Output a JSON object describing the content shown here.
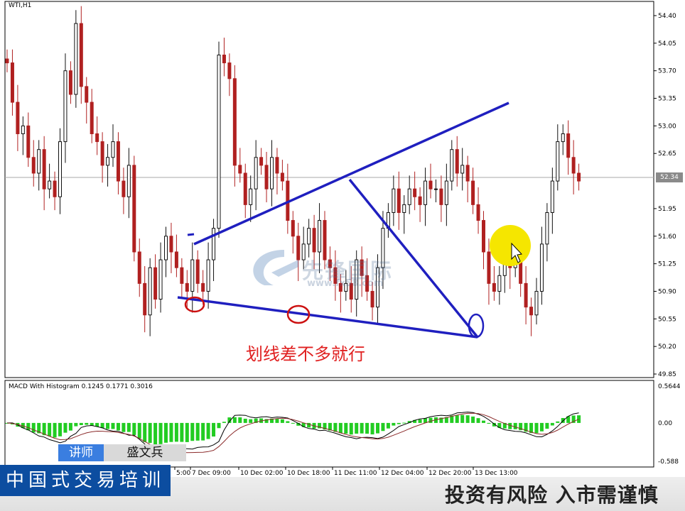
{
  "window": {
    "symbol": "WTI,H1"
  },
  "price_axis": {
    "ticks": [
      "54.40",
      "54.05",
      "53.70",
      "53.35",
      "53.00",
      "52.65",
      "52.34",
      "51.95",
      "51.60",
      "51.25",
      "50.90",
      "50.55",
      "50.20",
      "49.85"
    ],
    "last_price": "52.34"
  },
  "macd_panel": {
    "label": "MACD With Histogram 0.1245 0.1771 0.3016",
    "axis_ticks": [
      "0.5644",
      "0.00",
      "-0.588"
    ]
  },
  "time_axis": [
    "5:00",
    "7 Dec 09:00",
    "10 Dec 02:00",
    "10 Dec 18:00",
    "11 Dec 11:00",
    "12 Dec 04:00",
    "12 Dec 20:00",
    "13 Dec 13:00"
  ],
  "annotation": {
    "text": "划线差不多就行"
  },
  "watermark": {
    "name": "先锋国际",
    "url": "www.fx58.com"
  },
  "lecturer": {
    "tag": "讲师",
    "name": "盛文兵"
  },
  "course_banner": "中国式交易培训",
  "risk_notice": "投资有风险 入市需谨慎",
  "colors": {
    "bull": "#111111",
    "bear": "#b02020",
    "trendline": "#1f1fbf",
    "macd_hist": "#22cc22",
    "circle_red": "#cc1111",
    "cursor_highlight": "#f5e600"
  },
  "chart_data": {
    "type": "candlestick",
    "title": "WTI,H1",
    "ylim": [
      49.85,
      54.4
    ],
    "price_series_close": [
      53.8,
      53.3,
      52.9,
      53.0,
      52.6,
      52.4,
      52.7,
      52.2,
      52.3,
      52.1,
      52.8,
      53.7,
      53.4,
      54.3,
      53.5,
      53.3,
      52.9,
      52.8,
      52.5,
      52.6,
      52.8,
      52.3,
      52.1,
      52.5,
      51.4,
      51.0,
      50.6,
      51.2,
      50.8,
      51.3,
      51.6,
      51.4,
      51.2,
      51.0,
      50.9,
      51.3,
      51.0,
      50.9,
      51.3,
      51.7,
      53.9,
      53.8,
      53.6,
      52.5,
      52.4,
      52.0,
      52.2,
      52.6,
      52.5,
      52.2,
      52.6,
      52.4,
      52.3,
      51.8,
      51.6,
      51.3,
      51.5,
      51.7,
      51.4,
      51.8,
      51.3,
      51.2,
      51.0,
      50.9,
      51.0,
      50.8,
      51.3,
      51.1,
      50.9,
      50.7,
      51.2,
      51.7,
      51.9,
      52.2,
      51.9,
      52.0,
      52.2,
      52.1,
      52.0,
      52.3,
      52.2,
      52.2,
      52.0,
      52.3,
      52.7,
      52.4,
      52.5,
      52.3,
      52.0,
      51.8,
      51.4,
      51.0,
      50.9,
      51.1,
      51.3,
      51.2,
      51.3,
      51.0,
      50.7,
      50.6,
      50.9,
      51.5,
      51.9,
      52.3,
      52.8,
      52.9,
      52.6,
      52.4,
      52.3
    ],
    "trendlines": [
      {
        "name": "upper",
        "from": [
          "7 Dec 03:00",
          51.52
        ],
        "to": [
          "13 Dec 16:00",
          53.26
        ]
      },
      {
        "name": "lower",
        "from": [
          "6 Dec 21:00",
          50.86
        ],
        "to": [
          "13 Dec 12:00",
          50.32
        ]
      },
      {
        "name": "down",
        "from": [
          "11 Dec 14:00",
          52.34
        ],
        "to": [
          "13 Dec 12:00",
          50.32
        ]
      }
    ],
    "macd": {
      "value": 0.1245,
      "signal": 0.1771,
      "hist": 0.3016,
      "ylim": [
        -0.588,
        0.5644
      ]
    }
  }
}
